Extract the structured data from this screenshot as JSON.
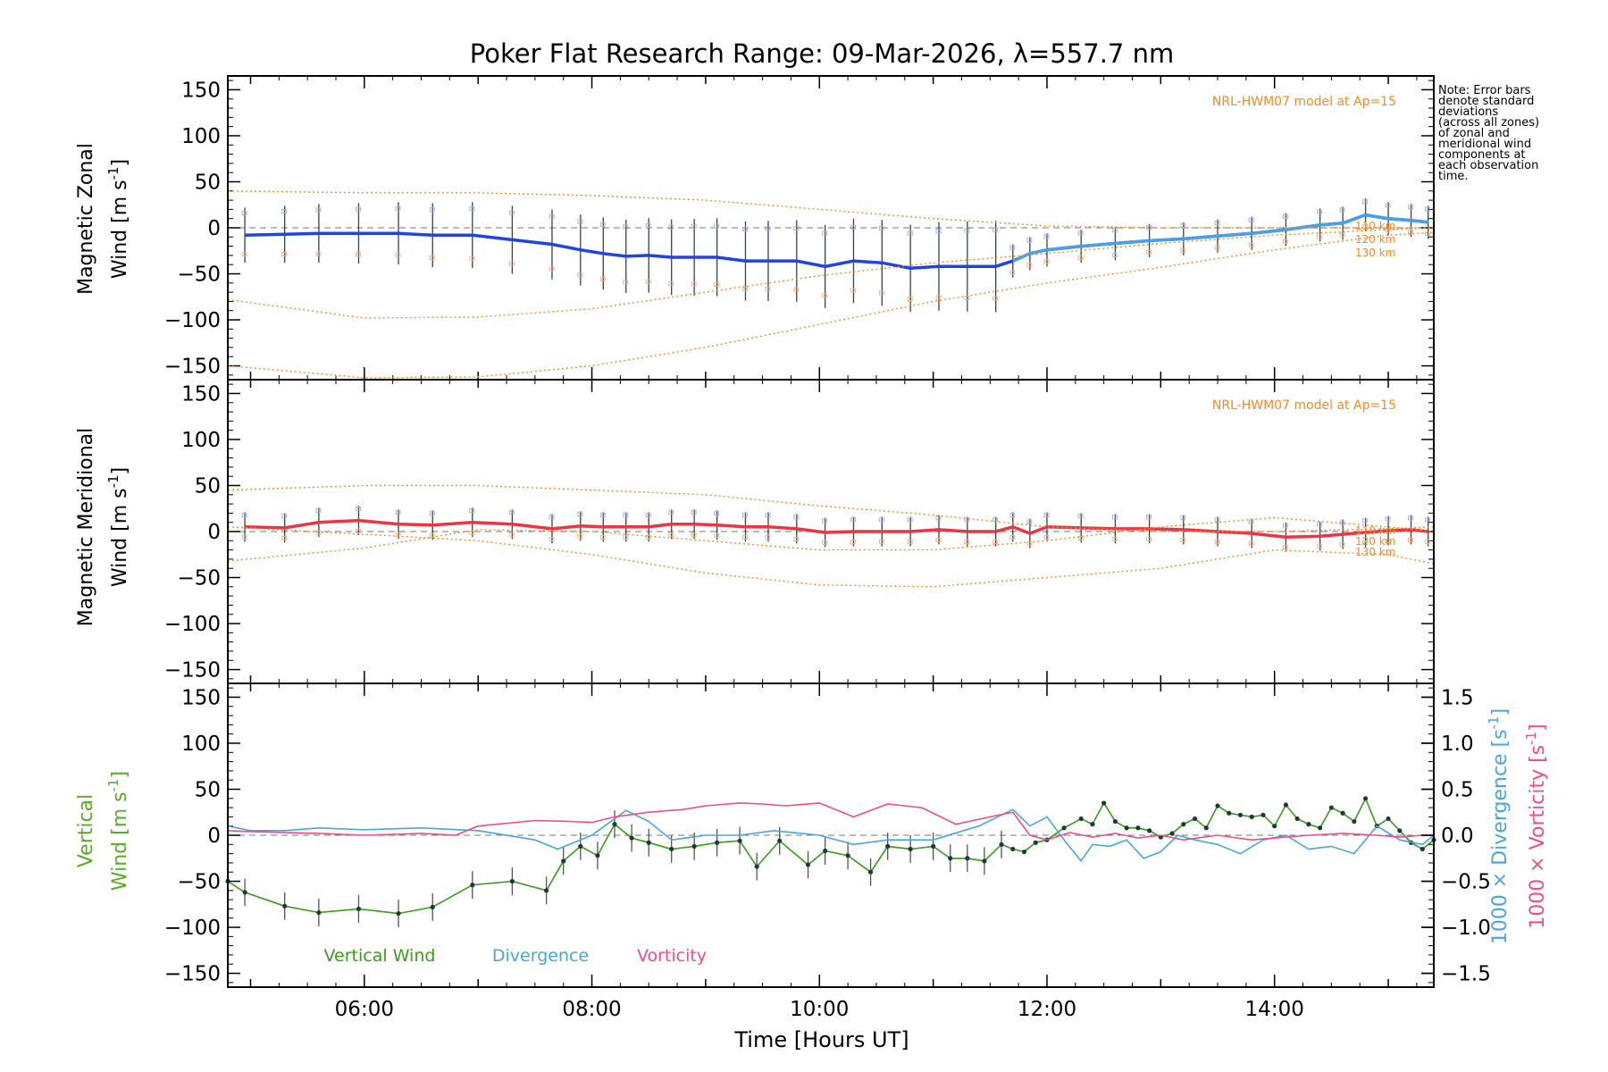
{
  "chart_data": [
    {
      "panel": "zonal",
      "type": "line",
      "title": "Poker Flat Research Range: 09-Mar-2026, λ=557.7 nm",
      "ylabel_line1": "Magnetic Zonal",
      "ylabel_line2": "Wind [m s",
      "ylabel_sup": "-1",
      "ylabel_end": "]",
      "ylim": [
        -165,
        165
      ],
      "yticks": [
        -150,
        -100,
        -50,
        0,
        50,
        100,
        150
      ],
      "model_label": "NRL-HWM07 model at Ap=15",
      "model_alt_labels": [
        "110 km",
        "120 km",
        "130 km"
      ],
      "series": [
        {
          "name": "Magnetic Zonal Wind",
          "x": [
            4.95,
            5.3,
            5.6,
            5.95,
            6.3,
            6.6,
            6.95,
            7.3,
            7.65,
            7.9,
            8.1,
            8.3,
            8.5,
            8.7,
            8.9,
            9.1,
            9.35,
            9.55,
            9.8,
            10.05,
            10.3,
            10.55,
            10.8,
            11.05,
            11.3,
            11.55,
            11.7,
            11.85,
            12.0,
            12.3,
            12.6,
            12.9,
            13.2,
            13.5,
            13.8,
            14.1,
            14.4,
            14.6,
            14.8,
            15.0,
            15.2,
            15.35
          ],
          "y": [
            -8,
            -7,
            -6,
            -6,
            -6,
            -8,
            -8,
            -13,
            -18,
            -24,
            -28,
            -31,
            -30,
            -32,
            -32,
            -32,
            -36,
            -36,
            -36,
            -42,
            -36,
            -38,
            -44,
            -42,
            -42,
            -42,
            -36,
            -28,
            -24,
            -20,
            -17,
            -14,
            -12,
            -9,
            -6,
            -2,
            3,
            5,
            14,
            10,
            8,
            6
          ]
        },
        {
          "name": "HWM07 110 km",
          "x": [
            4.8,
            6,
            7,
            8,
            9,
            10,
            11,
            12,
            13,
            14,
            15,
            15.4
          ],
          "y": [
            40,
            38,
            38,
            35,
            30,
            20,
            10,
            2,
            0,
            0,
            0,
            0
          ]
        },
        {
          "name": "HWM07 120 km",
          "x": [
            4.8,
            6,
            7,
            8,
            9,
            10,
            11,
            12,
            13,
            14,
            15,
            15.4
          ],
          "y": [
            -78,
            -98,
            -97,
            -88,
            -70,
            -52,
            -38,
            -28,
            -17,
            -8,
            -2,
            0
          ]
        },
        {
          "name": "HWM07 130 km",
          "x": [
            4.8,
            6,
            7,
            8,
            9,
            10,
            11,
            12,
            13,
            14,
            15,
            15.4
          ],
          "y": [
            -150,
            -163,
            -162,
            -150,
            -130,
            -105,
            -80,
            -60,
            -43,
            -24,
            -8,
            -5
          ]
        }
      ]
    },
    {
      "panel": "meridional",
      "type": "line",
      "ylabel_line1": "Magnetic Meridional",
      "ylabel_line2": "Wind [m s",
      "ylabel_sup": "-1",
      "ylabel_end": "]",
      "ylim": [
        -165,
        165
      ],
      "yticks": [
        -150,
        -100,
        -50,
        0,
        50,
        100,
        150
      ],
      "model_label": "NRL-HWM07 model at Ap=15",
      "model_alt_labels": [
        "110 km",
        "120 km",
        "130 km"
      ],
      "series": [
        {
          "name": "Magnetic Meridional Wind",
          "x": [
            4.95,
            5.3,
            5.6,
            5.95,
            6.3,
            6.6,
            6.95,
            7.3,
            7.65,
            7.9,
            8.1,
            8.3,
            8.5,
            8.7,
            8.9,
            9.1,
            9.35,
            9.55,
            9.8,
            10.05,
            10.3,
            10.55,
            10.8,
            11.05,
            11.3,
            11.55,
            11.7,
            11.85,
            12.0,
            12.3,
            12.6,
            12.9,
            13.2,
            13.5,
            13.8,
            14.1,
            14.4,
            14.6,
            14.8,
            15.0,
            15.2,
            15.35
          ],
          "y": [
            5,
            4,
            10,
            12,
            8,
            7,
            10,
            8,
            3,
            6,
            5,
            5,
            5,
            8,
            8,
            7,
            5,
            5,
            3,
            -1,
            0,
            0,
            0,
            2,
            0,
            0,
            5,
            -2,
            5,
            4,
            3,
            3,
            2,
            0,
            -2,
            -6,
            -5,
            -3,
            -1,
            1,
            2,
            0
          ]
        },
        {
          "name": "HWM07 110 km",
          "x": [
            4.8,
            6,
            7,
            8,
            9,
            10,
            11,
            12,
            13,
            14,
            15,
            15.4
          ],
          "y": [
            45,
            50,
            50,
            45,
            40,
            28,
            18,
            5,
            0,
            0,
            3,
            5
          ]
        },
        {
          "name": "HWM07 120 km",
          "x": [
            4.8,
            6,
            7,
            8,
            9,
            10,
            11,
            12,
            13,
            14,
            15,
            15.4
          ],
          "y": [
            -32,
            -18,
            2,
            0,
            -10,
            -20,
            -20,
            -10,
            5,
            15,
            5,
            0
          ]
        },
        {
          "name": "HWM07 130 km",
          "x": [
            4.8,
            6,
            7,
            8,
            9,
            10,
            11,
            12,
            13,
            14,
            15,
            15.4
          ],
          "y": [
            5,
            -3,
            -10,
            -25,
            -45,
            -58,
            -60,
            -50,
            -40,
            -20,
            -25,
            -35
          ]
        }
      ]
    },
    {
      "panel": "vertical",
      "type": "line",
      "ylabel_line1": "Vertical",
      "ylabel_line2": "Wind [m s",
      "ylabel_sup": "-1",
      "ylabel_end": "]",
      "ylim": [
        -165,
        165
      ],
      "yticks": [
        -150,
        -100,
        -50,
        0,
        50,
        100,
        150
      ],
      "y2lim": [
        -1.65,
        1.65
      ],
      "y2ticks": [
        -1.5,
        -1.0,
        -0.5,
        0.0,
        0.5,
        1.0,
        1.5
      ],
      "y2tick_labels": [
        "−1.5",
        "−1.0",
        "−0.5",
        "0.0",
        "0.5",
        "1.0",
        "1.5"
      ],
      "y2label_div": "1000 × Divergence [s",
      "y2label_vor": "1000 × Vorticity [s",
      "y2label_sup": "-1",
      "y2label_end": "]",
      "legend": [
        "Vertical Wind",
        "Divergence",
        "Vorticity"
      ],
      "xlabel": "Time [Hours UT]",
      "xticks": [
        6,
        8,
        10,
        12,
        14
      ],
      "xtick_labels": [
        "06:00",
        "08:00",
        "10:00",
        "12:00",
        "14:00"
      ],
      "xlim": [
        4.8,
        15.4
      ],
      "series": [
        {
          "name": "Vertical Wind",
          "axis": "left",
          "color": "#3a9a1a",
          "x": [
            4.8,
            4.95,
            5.3,
            5.6,
            5.95,
            6.3,
            6.6,
            6.95,
            7.3,
            7.6,
            7.75,
            7.9,
            8.05,
            8.2,
            8.35,
            8.5,
            8.7,
            8.9,
            9.1,
            9.3,
            9.45,
            9.65,
            9.9,
            10.05,
            10.25,
            10.45,
            10.6,
            10.8,
            11.0,
            11.15,
            11.3,
            11.45,
            11.6,
            11.7,
            11.8,
            11.9,
            12.0,
            12.15,
            12.3,
            12.4,
            12.5,
            12.6,
            12.7,
            12.8,
            12.9,
            13.0,
            13.1,
            13.2,
            13.3,
            13.4,
            13.5,
            13.6,
            13.7,
            13.8,
            13.9,
            14.0,
            14.1,
            14.2,
            14.3,
            14.4,
            14.5,
            14.6,
            14.7,
            14.8,
            14.9,
            15.0,
            15.1,
            15.2,
            15.3,
            15.4
          ],
          "y": [
            -50,
            -62,
            -77,
            -84,
            -80,
            -85,
            -78,
            -54,
            -50,
            -60,
            -28,
            -12,
            -22,
            12,
            -3,
            -8,
            -15,
            -12,
            -8,
            -6,
            -34,
            -6,
            -32,
            -17,
            -22,
            -40,
            -12,
            -15,
            -12,
            -25,
            -25,
            -28,
            -10,
            -15,
            -18,
            -8,
            -5,
            8,
            18,
            12,
            35,
            15,
            8,
            8,
            5,
            -2,
            2,
            12,
            18,
            8,
            32,
            24,
            22,
            20,
            22,
            10,
            33,
            18,
            12,
            8,
            30,
            24,
            15,
            40,
            10,
            18,
            5,
            -8,
            -15,
            -5
          ]
        },
        {
          "name": "Divergence",
          "axis": "right",
          "color": "#4aa6d8",
          "x": [
            4.8,
            5.0,
            5.3,
            5.6,
            6.0,
            6.5,
            7.0,
            7.5,
            7.7,
            8.0,
            8.3,
            8.5,
            8.7,
            9.0,
            9.3,
            9.6,
            10.0,
            10.3,
            10.6,
            11.0,
            11.4,
            11.7,
            11.85,
            12.0,
            12.15,
            12.3,
            12.4,
            12.55,
            12.7,
            12.85,
            13.0,
            13.15,
            13.3,
            13.5,
            13.7,
            13.9,
            14.1,
            14.3,
            14.5,
            14.7,
            14.9,
            15.1,
            15.3,
            15.4
          ],
          "y": [
            0.1,
            0.05,
            0.05,
            0.08,
            0.06,
            0.08,
            0.05,
            -0.05,
            -0.15,
            0.0,
            0.27,
            0.15,
            -0.05,
            0.0,
            0.0,
            0.05,
            0.0,
            -0.1,
            -0.05,
            -0.05,
            0.1,
            0.28,
            0.1,
            0.2,
            -0.05,
            -0.28,
            -0.1,
            -0.12,
            -0.05,
            -0.25,
            -0.18,
            0.0,
            -0.05,
            -0.1,
            -0.2,
            -0.05,
            0.0,
            -0.15,
            -0.12,
            -0.2,
            0.1,
            -0.05,
            -0.1,
            0.0
          ]
        },
        {
          "name": "Vorticity",
          "axis": "right",
          "color": "#ee4d8a",
          "x": [
            4.8,
            5.0,
            5.3,
            5.6,
            6.0,
            6.5,
            6.8,
            7.0,
            7.5,
            7.8,
            8.0,
            8.2,
            8.5,
            8.8,
            9.0,
            9.3,
            9.5,
            9.7,
            10.0,
            10.3,
            10.6,
            10.9,
            11.2,
            11.5,
            11.7,
            11.85,
            12.0,
            12.2,
            12.4,
            12.6,
            12.8,
            13.0,
            13.2,
            13.5,
            13.8,
            14.0,
            14.3,
            14.6,
            14.9,
            15.1,
            15.3,
            15.4
          ],
          "y": [
            0.05,
            0.04,
            0.03,
            0.02,
            0.0,
            0.02,
            0.0,
            0.1,
            0.16,
            0.15,
            0.14,
            0.2,
            0.25,
            0.28,
            0.32,
            0.35,
            0.34,
            0.32,
            0.35,
            0.2,
            0.34,
            0.3,
            0.12,
            0.2,
            0.25,
            0.0,
            -0.05,
            0.03,
            -0.02,
            0.02,
            -0.03,
            0.0,
            -0.05,
            0.0,
            -0.05,
            -0.03,
            0.0,
            0.02,
            0.0,
            -0.02,
            0.0,
            0.0
          ]
        }
      ]
    }
  ],
  "note": {
    "lines": [
      "Note: Error bars",
      "denote standard",
      "deviations",
      "(across all zones)",
      "of zonal and",
      "meridional wind",
      "components at",
      "each observation",
      "time."
    ]
  }
}
